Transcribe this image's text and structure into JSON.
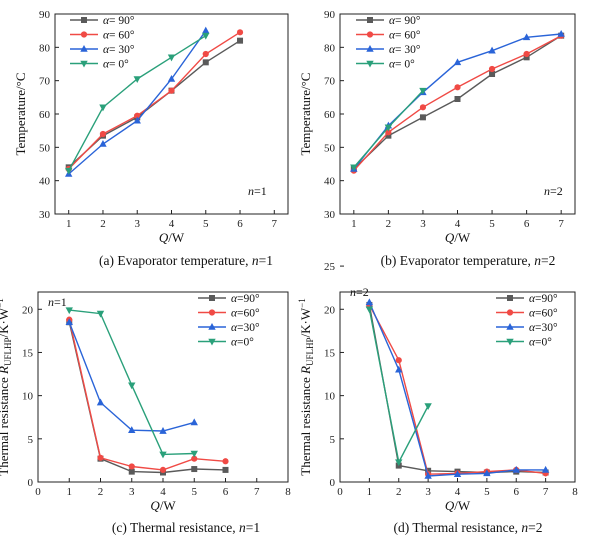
{
  "chart_data": [
    {
      "type": "line",
      "caption": "(a) Evaporator temperature, n=1",
      "caption_parts": [
        "(a) Evaporator temperature, ",
        "n",
        "=1"
      ],
      "annotation": [
        "n",
        "=1"
      ],
      "xlabel": [
        "Q",
        "/W"
      ],
      "ylabel": "Temperature/°C",
      "xlim": [
        0.6,
        7.4
      ],
      "ylim": [
        30,
        90
      ],
      "xticks": [
        1,
        2,
        3,
        4,
        5,
        6,
        7
      ],
      "yticks": [
        30,
        40,
        50,
        60,
        70,
        80,
        90
      ],
      "legend": [
        "α= 90°",
        "α= 60°",
        "α= 30°",
        "α= 0°"
      ],
      "series": [
        {
          "name": "α= 90°",
          "x": [
            1,
            2,
            3,
            4,
            5,
            6
          ],
          "values": [
            44,
            53.5,
            59,
            67,
            75.5,
            82
          ]
        },
        {
          "name": "α= 60°",
          "x": [
            1,
            2,
            3,
            4,
            5,
            6
          ],
          "values": [
            43.5,
            54,
            59.5,
            67,
            78,
            84.5
          ]
        },
        {
          "name": "α= 30°",
          "x": [
            1,
            2,
            3,
            4,
            5
          ],
          "values": [
            42,
            51,
            58,
            70.5,
            85
          ]
        },
        {
          "name": "α= 0°",
          "x": [
            1,
            2,
            3,
            4,
            5
          ],
          "values": [
            43,
            62,
            70.5,
            77,
            83.5
          ]
        }
      ]
    },
    {
      "type": "line",
      "caption": "(b) Evaporator temperature, n=2",
      "caption_parts": [
        "(b) Evaporator temperature, ",
        "n",
        "=2"
      ],
      "annotation": [
        "n",
        "=2"
      ],
      "xlabel": [
        "Q",
        "/W"
      ],
      "ylabel": "Temperature/°C",
      "xlim": [
        0.6,
        7.4
      ],
      "ylim": [
        30,
        90
      ],
      "xticks": [
        1,
        2,
        3,
        4,
        5,
        6,
        7
      ],
      "yticks": [
        30,
        40,
        50,
        60,
        70,
        80,
        90
      ],
      "legend": [
        "α= 90°",
        "α= 60°",
        "α= 30°",
        "α= 0°"
      ],
      "series": [
        {
          "name": "α= 90°",
          "x": [
            1,
            2,
            3,
            4,
            5,
            6,
            7
          ],
          "values": [
            43.5,
            53.5,
            59,
            64.5,
            72,
            77,
            83.5
          ]
        },
        {
          "name": "α= 60°",
          "x": [
            1,
            2,
            3,
            4,
            5,
            6,
            7
          ],
          "values": [
            43,
            54.5,
            62,
            68,
            73.5,
            78,
            83.5
          ]
        },
        {
          "name": "α= 30°",
          "x": [
            1,
            2,
            3,
            4,
            5,
            6,
            7
          ],
          "values": [
            43.5,
            56.5,
            66.5,
            75.5,
            79,
            83,
            84
          ]
        },
        {
          "name": "α= 0°",
          "x": [
            1,
            2,
            3
          ],
          "values": [
            44,
            56,
            67
          ]
        }
      ]
    },
    {
      "type": "line",
      "caption": "(c) Thermal resistance, n=1",
      "caption_parts": [
        "(c) Thermal resistance, ",
        "n",
        "=1"
      ],
      "annotation": [
        "n",
        "=1"
      ],
      "xlabel": [
        "Q",
        "/W"
      ],
      "ylabel": [
        "Thermal resistance ",
        "R",
        "UFLHP",
        "/K·W",
        "−1"
      ],
      "xlim": [
        0,
        8
      ],
      "ylim": [
        0,
        22
      ],
      "xticks": [
        0,
        1,
        2,
        3,
        4,
        5,
        6,
        7,
        8
      ],
      "yticks": [
        0,
        5,
        10,
        15,
        20
      ],
      "legend": [
        "α=90°",
        "α=60°",
        "α=30°",
        "α=0°"
      ],
      "series": [
        {
          "name": "α=90°",
          "x": [
            1,
            2,
            3,
            4,
            5,
            6
          ],
          "values": [
            18.5,
            2.7,
            1.2,
            1.1,
            1.5,
            1.4
          ]
        },
        {
          "name": "α=60°",
          "x": [
            1,
            2,
            3,
            4,
            5,
            6
          ],
          "values": [
            18.8,
            2.8,
            1.8,
            1.4,
            2.7,
            2.4
          ]
        },
        {
          "name": "α=30°",
          "x": [
            1,
            2,
            3,
            4,
            5
          ],
          "values": [
            18.5,
            9.2,
            6.0,
            5.9,
            6.9
          ]
        },
        {
          "name": "α=0°",
          "x": [
            1,
            2,
            3,
            4,
            5
          ],
          "values": [
            19.9,
            19.5,
            11.2,
            3.2,
            3.3
          ]
        }
      ]
    },
    {
      "type": "line",
      "caption": "(d) Thermal resistance, n=2",
      "caption_parts": [
        "(d) Thermal resistance, ",
        "n",
        "=2"
      ],
      "annotation": [
        "n",
        "=2"
      ],
      "xlabel": [
        "Q",
        "/W"
      ],
      "ylabel": [
        "Thermal resistance ",
        "R",
        "UFLHP",
        "/K·W",
        "−1"
      ],
      "xlim": [
        0,
        8
      ],
      "ylim": [
        0,
        22
      ],
      "xticks": [
        0,
        1,
        2,
        3,
        4,
        5,
        6,
        7,
        8
      ],
      "yticks": [
        0,
        5,
        10,
        15,
        20,
        25
      ],
      "legend": [
        "α=90°",
        "α=60°",
        "α=30°",
        "α=0°"
      ],
      "series": [
        {
          "name": "α=90°",
          "x": [
            1,
            2,
            3,
            4,
            5,
            6,
            7
          ],
          "values": [
            20.5,
            1.9,
            1.3,
            1.2,
            1.1,
            1.2,
            1.1
          ]
        },
        {
          "name": "α=60°",
          "x": [
            1,
            2,
            3,
            4,
            5,
            6,
            7
          ],
          "values": [
            20.5,
            14.1,
            0.9,
            1.0,
            1.2,
            1.4,
            1.0
          ]
        },
        {
          "name": "α=30°",
          "x": [
            1,
            2,
            3,
            4,
            5,
            6,
            7
          ],
          "values": [
            20.8,
            13.0,
            0.7,
            0.9,
            1.0,
            1.4,
            1.4
          ]
        },
        {
          "name": "α=0°",
          "x": [
            1,
            2,
            3
          ],
          "values": [
            20.0,
            2.3,
            8.8
          ]
        }
      ]
    }
  ],
  "series_styles": [
    {
      "color": "#5a5a5a",
      "marker": "square"
    },
    {
      "color": "#f04a45",
      "marker": "circle"
    },
    {
      "color": "#2a64d8",
      "marker": "triangle-up"
    },
    {
      "color": "#2aa07a",
      "marker": "triangle-down"
    }
  ]
}
